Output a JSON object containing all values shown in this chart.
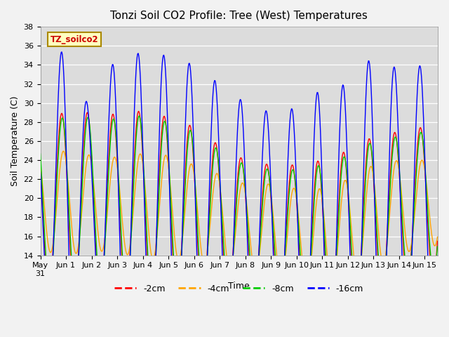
{
  "title": "Tonzi Soil CO2 Profile: Tree (West) Temperatures",
  "xlabel": "Time",
  "ylabel": "Soil Temperature (C)",
  "legend_label": "TZ_soilco2",
  "series_labels": [
    "-2cm",
    "-4cm",
    "-8cm",
    "-16cm"
  ],
  "series_colors": [
    "#FF0000",
    "#FFA500",
    "#00CC00",
    "#0000FF"
  ],
  "ylim": [
    14,
    38
  ],
  "xlim": [
    0,
    15.5
  ],
  "background_color": "#E8E8E8",
  "plot_bg_color": "#DCDCDC",
  "tick_dates": [
    "May\n31",
    "Jun 1",
    "Jun 2",
    "Jun 3",
    "Jun 4",
    "Jun 5",
    "Jun 6",
    "Jun 7",
    "Jun 8",
    "Jun 9",
    "Jun 10",
    "Jun 11",
    "Jun 12",
    "Jun 13",
    "Jun 14",
    "Jun 15"
  ],
  "figsize": [
    6.4,
    4.8
  ],
  "dpi": 100
}
